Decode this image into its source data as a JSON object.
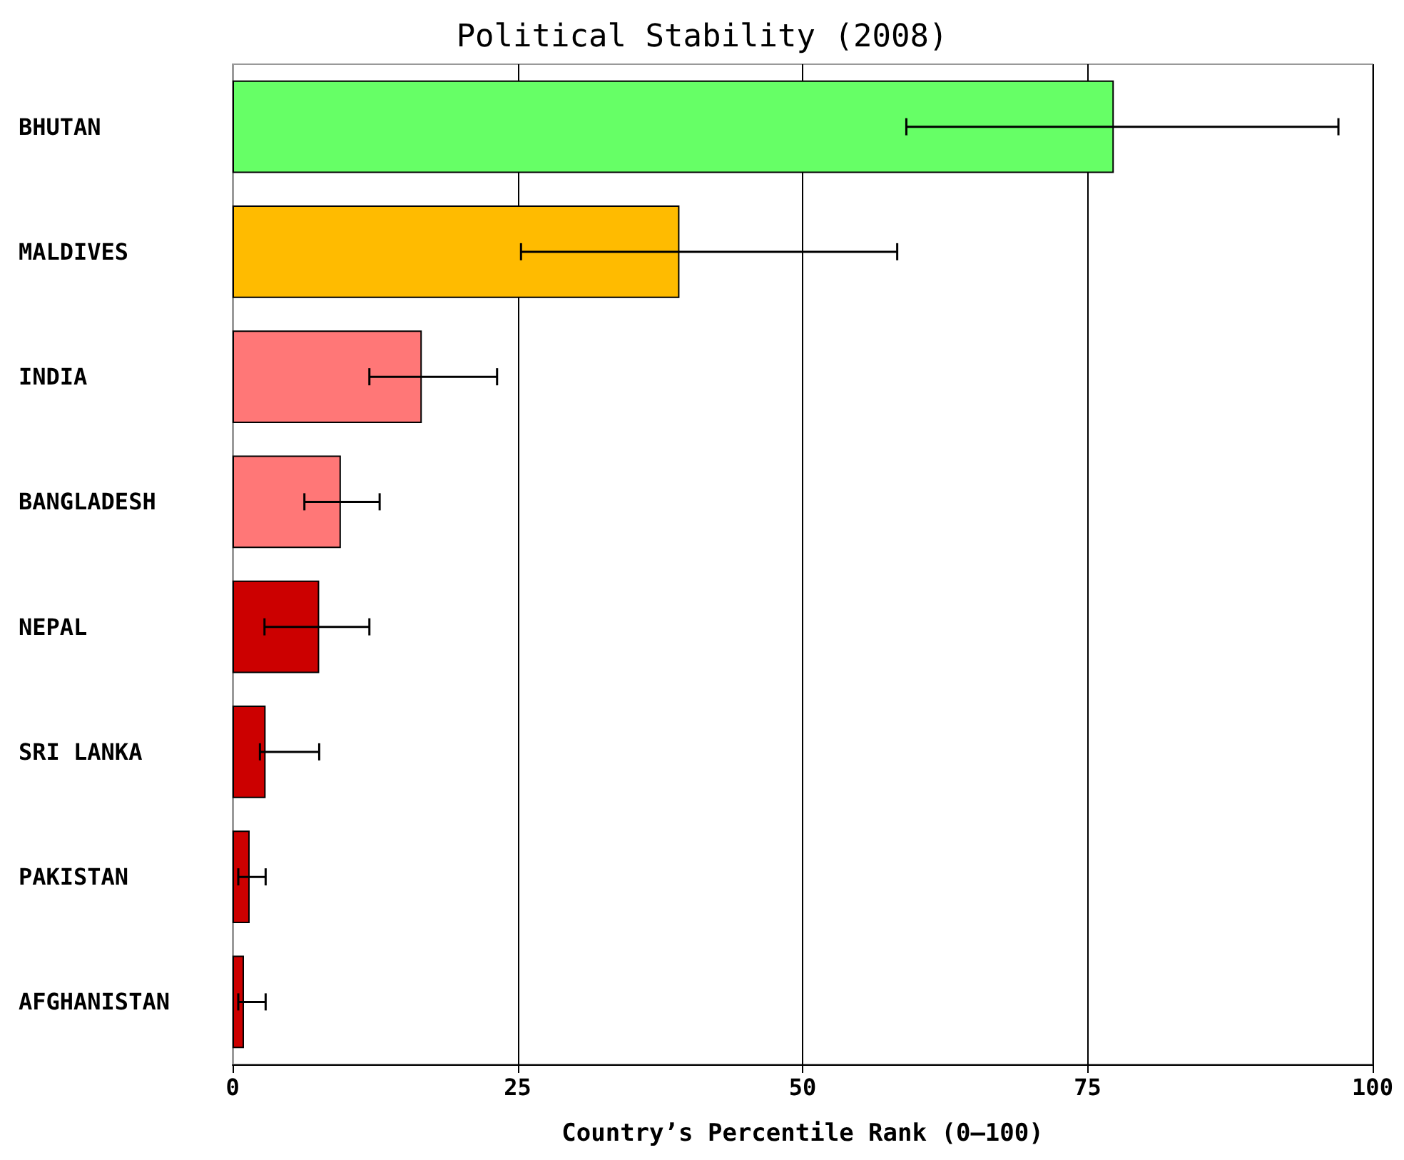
{
  "chart_data": {
    "type": "bar",
    "orientation": "horizontal",
    "title": "Political Stability (2008)",
    "xlabel": "Country’s Percentile Rank (0–100)",
    "categories": [
      "BHUTAN",
      "MALDIVES",
      "INDIA",
      "BANGLADESH",
      "NEPAL",
      "SRI LANKA",
      "PAKISTAN",
      "AFGHANISTAN"
    ],
    "values": [
      77.3,
      39.2,
      16.6,
      9.5,
      7.6,
      2.9,
      1.5,
      1.0
    ],
    "colors": [
      "#66ff66",
      "#ffbb00",
      "#ff7777",
      "#ff7777",
      "#cc0000",
      "#cc0000",
      "#cc0000",
      "#cc0000"
    ],
    "errors": [
      [
        59.1,
        97.0
      ],
      [
        25.3,
        58.3
      ],
      [
        12.0,
        23.2
      ],
      [
        6.3,
        12.9
      ],
      [
        2.8,
        12.0
      ],
      [
        2.4,
        7.6
      ],
      [
        0.5,
        2.9
      ],
      [
        0.5,
        2.9
      ]
    ],
    "xlim": [
      0,
      100
    ],
    "xticks": [
      0,
      25,
      50,
      75,
      100
    ],
    "grid": "x"
  }
}
